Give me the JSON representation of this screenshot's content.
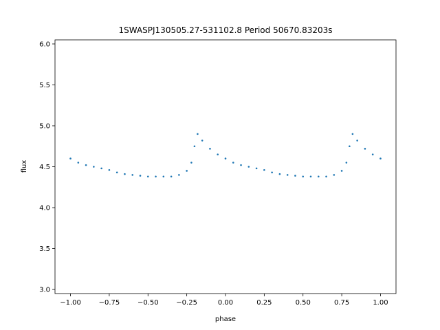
{
  "chart_data": {
    "type": "scatter",
    "title": "1SWASPJ130505.27-531102.8 Period 50670.83203s",
    "xlabel": "phase",
    "ylabel": "flux",
    "xlim": [
      -1.1,
      1.1
    ],
    "ylim": [
      2.95,
      6.05
    ],
    "xticks": [
      -1.0,
      -0.75,
      -0.5,
      -0.25,
      0.0,
      0.25,
      0.5,
      0.75,
      1.0
    ],
    "xtick_labels": [
      "−1.00",
      "−0.75",
      "−0.50",
      "−0.25",
      "0.00",
      "0.25",
      "0.50",
      "0.75",
      "1.00"
    ],
    "yticks": [
      3.0,
      3.5,
      4.0,
      4.5,
      5.0,
      5.5,
      6.0
    ],
    "ytick_labels": [
      "3.0",
      "3.5",
      "4.0",
      "4.5",
      "5.0",
      "5.5",
      "6.0"
    ],
    "grid": false,
    "legend": "none",
    "point_color": "#1f77b4",
    "series": [
      {
        "points": [
          [
            -1.0,
            4.6
          ],
          [
            -0.95,
            4.55
          ],
          [
            -0.9,
            4.52
          ],
          [
            -0.85,
            4.5
          ],
          [
            -0.8,
            4.48
          ],
          [
            -0.75,
            4.46
          ],
          [
            -0.7,
            4.43
          ],
          [
            -0.65,
            4.41
          ],
          [
            -0.6,
            4.4
          ],
          [
            -0.55,
            4.39
          ],
          [
            -0.5,
            4.38
          ],
          [
            -0.45,
            4.38
          ],
          [
            -0.4,
            4.38
          ],
          [
            -0.35,
            4.38
          ],
          [
            -0.3,
            4.4
          ],
          [
            -0.25,
            4.45
          ],
          [
            -0.22,
            4.55
          ],
          [
            -0.2,
            4.75
          ],
          [
            -0.18,
            4.9
          ],
          [
            -0.15,
            4.82
          ],
          [
            -0.1,
            4.72
          ],
          [
            -0.05,
            4.65
          ],
          [
            0.0,
            4.6
          ],
          [
            0.05,
            4.55
          ],
          [
            0.1,
            4.52
          ],
          [
            0.15,
            4.5
          ],
          [
            0.2,
            4.48
          ],
          [
            0.25,
            4.46
          ],
          [
            0.3,
            4.43
          ],
          [
            0.35,
            4.41
          ],
          [
            0.4,
            4.4
          ],
          [
            0.45,
            4.39
          ],
          [
            0.5,
            4.38
          ],
          [
            0.55,
            4.38
          ],
          [
            0.6,
            4.38
          ],
          [
            0.65,
            4.38
          ],
          [
            0.7,
            4.4
          ],
          [
            0.75,
            4.45
          ],
          [
            0.78,
            4.55
          ],
          [
            0.8,
            4.75
          ],
          [
            0.82,
            4.9
          ],
          [
            0.85,
            4.82
          ],
          [
            0.9,
            4.72
          ],
          [
            0.95,
            4.65
          ],
          [
            1.0,
            4.6
          ]
        ]
      }
    ]
  }
}
